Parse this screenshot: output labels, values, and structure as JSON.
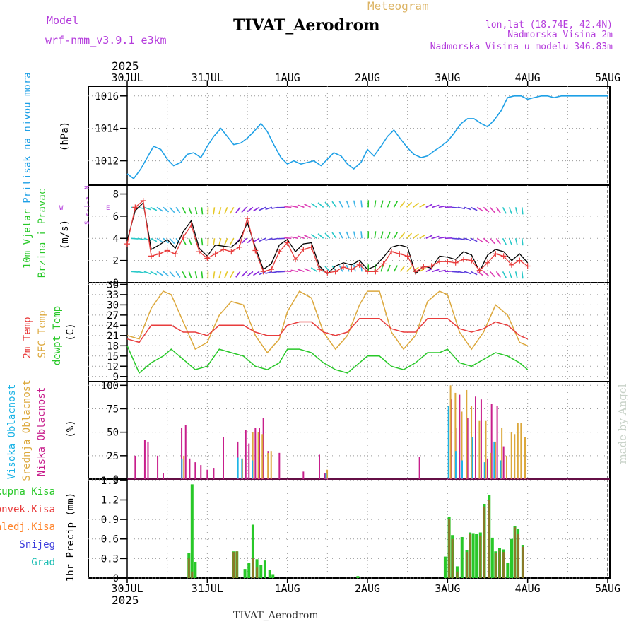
{
  "header": {
    "model_label": "Model",
    "model_name": "wrf-nmm_v3.9.1  e3km",
    "meteogram_label": "Meteogram",
    "station_title": "TIVAT_Aerodrom",
    "location": "lon,lat (18.74E, 42.4N)",
    "altitude": "Nadmorska Visina 2m",
    "model_altitude": "Nadmorska Visina u modelu 346.83m",
    "year_top": "2025",
    "year_bottom": "2025",
    "footer_station": "TIVAT_Aerodrom",
    "watermark": "made by Angel"
  },
  "colors": {
    "pressure": "#1ea0e6",
    "temp2m": "#e83c3c",
    "sfc_temp": "#dca83c",
    "dewpt": "#28c828",
    "high_cloud": "#1eb4e6",
    "mid_cloud": "#dca83c",
    "low_cloud": "#c81e8c",
    "total_precip": "#28c828",
    "conv_precip": "#e83c3c",
    "frozen_precip": "#ff8228",
    "snow": "#3c3cdc",
    "hail": "#1ebeb4",
    "wind_title": "#28c828",
    "compass": "#b43cdc",
    "header_purple": "#b43cdc",
    "meteogram_label": "#dcb464"
  },
  "chart_data": [
    {
      "type": "line",
      "panel": "pressure",
      "title": "Pritisak na nivou mora",
      "ylabel": "(hPa)",
      "x_labels": [
        "30JUL",
        "31JUL",
        "1AUG",
        "2AUG",
        "3AUG",
        "4AUG",
        "5AUG"
      ],
      "ylim": [
        1010.5,
        1016.6
      ],
      "yticks": [
        1012,
        1014,
        1016
      ],
      "x": [
        0,
        0.08,
        0.17,
        0.25,
        0.33,
        0.42,
        0.5,
        0.58,
        0.67,
        0.75,
        0.83,
        0.92,
        1.0,
        1.08,
        1.17,
        1.25,
        1.33,
        1.42,
        1.5,
        1.58,
        1.67,
        1.75,
        1.83,
        1.92,
        2.0,
        2.08,
        2.17,
        2.25,
        2.33,
        2.42,
        2.5,
        2.58,
        2.67,
        2.75,
        2.83,
        2.92,
        3.0,
        3.08,
        3.17,
        3.25,
        3.33,
        3.42,
        3.5,
        3.58,
        3.67,
        3.75,
        3.83,
        3.92,
        4.0,
        4.08,
        4.17,
        4.25,
        4.33,
        4.42,
        4.5,
        4.58,
        4.67,
        4.75,
        4.83,
        4.92,
        5.0,
        5.08,
        5.17,
        5.25,
        5.33,
        5.42,
        5.5,
        5.58,
        5.67,
        5.75,
        5.83,
        5.92,
        6.0
      ],
      "values": [
        1011.2,
        1010.9,
        1011.5,
        1012.2,
        1012.9,
        1012.7,
        1012.1,
        1011.7,
        1011.9,
        1012.4,
        1012.5,
        1012.2,
        1012.9,
        1013.5,
        1014.0,
        1013.5,
        1013.0,
        1013.1,
        1013.4,
        1013.8,
        1014.3,
        1013.8,
        1013.0,
        1012.2,
        1011.8,
        1012.0,
        1011.8,
        1011.9,
        1012.0,
        1011.7,
        1012.1,
        1012.5,
        1012.3,
        1011.8,
        1011.5,
        1011.9,
        1012.7,
        1012.3,
        1012.9,
        1013.5,
        1013.9,
        1013.3,
        1012.8,
        1012.4,
        1012.2,
        1012.3,
        1012.6,
        1012.9,
        1013.2,
        1013.7,
        1014.3,
        1014.6,
        1014.6,
        1014.3,
        1014.1,
        1014.5,
        1015.1,
        1015.9,
        1016.0,
        1016.0,
        1015.8,
        1015.9,
        1016.0,
        1016.0,
        1015.9,
        1016.0,
        1016.0,
        1016.0,
        1016.0,
        1016.0,
        1016.0,
        1016.0,
        1016.0
      ]
    },
    {
      "type": "line",
      "panel": "wind",
      "title_line1": "10m Vjetar",
      "title_line2": "Brzina i Pravac",
      "ylabel": "(m/s)",
      "compass": {
        "north": "N",
        "west": "W",
        "east": "E",
        "south": "S",
        "arrows": "<-|->"
      },
      "ylim": [
        0,
        8.8
      ],
      "yticks": [
        0,
        2,
        4,
        6,
        8
      ],
      "series": [
        {
          "name": "speed_black",
          "color": "#000000",
          "x": [
            0,
            0.1,
            0.2,
            0.3,
            0.4,
            0.5,
            0.6,
            0.7,
            0.8,
            0.9,
            1.0,
            1.1,
            1.2,
            1.3,
            1.4,
            1.5,
            1.6,
            1.7,
            1.8,
            1.9,
            2.0,
            2.1,
            2.2,
            2.3,
            2.4,
            2.5,
            2.6,
            2.7,
            2.8,
            2.9,
            3.0,
            3.1,
            3.2,
            3.3,
            3.4,
            3.5,
            3.6,
            3.7,
            3.8,
            3.9,
            4.0,
            4.1,
            4.2,
            4.3,
            4.4,
            4.5,
            4.6,
            4.7,
            4.8,
            4.9,
            5.0
          ],
          "values": [
            3.8,
            6.5,
            7.2,
            3.0,
            3.4,
            3.9,
            3.1,
            4.6,
            5.6,
            3.1,
            2.4,
            3.4,
            3.3,
            3.2,
            3.8,
            5.4,
            3.2,
            1.2,
            1.7,
            3.4,
            3.9,
            2.8,
            3.5,
            3.6,
            1.5,
            0.8,
            1.5,
            1.8,
            1.6,
            2.0,
            1.2,
            1.5,
            2.3,
            3.2,
            3.4,
            3.2,
            0.8,
            1.5,
            1.3,
            2.4,
            2.3,
            2.1,
            2.8,
            2.5,
            1.0,
            2.5,
            3.0,
            2.8,
            2.0,
            2.6,
            1.8
          ]
        },
        {
          "name": "gust_red",
          "color": "#e83c3c",
          "x": [
            0,
            0.1,
            0.2,
            0.3,
            0.4,
            0.5,
            0.6,
            0.7,
            0.8,
            0.9,
            1.0,
            1.1,
            1.2,
            1.3,
            1.4,
            1.5,
            1.6,
            1.7,
            1.8,
            1.9,
            2.0,
            2.1,
            2.2,
            2.3,
            2.4,
            2.5,
            2.6,
            2.7,
            2.8,
            2.9,
            3.0,
            3.1,
            3.2,
            3.3,
            3.4,
            3.5,
            3.6,
            3.7,
            3.8,
            3.9,
            4.0,
            4.1,
            4.2,
            4.3,
            4.4,
            4.5,
            4.6,
            4.7,
            4.8,
            4.9,
            5.0
          ],
          "values": [
            3.5,
            6.8,
            7.4,
            2.4,
            2.6,
            2.9,
            2.6,
            4.1,
            5.2,
            2.8,
            2.2,
            2.6,
            3.0,
            2.8,
            3.2,
            5.8,
            2.9,
            1.0,
            1.2,
            2.8,
            3.6,
            2.1,
            3.0,
            3.2,
            1.2,
            0.9,
            1.0,
            1.4,
            1.2,
            1.6,
            1.0,
            1.0,
            1.7,
            2.8,
            2.6,
            2.4,
            1.0,
            1.4,
            1.5,
            1.9,
            1.9,
            1.8,
            2.1,
            2.0,
            1.1,
            1.8,
            2.6,
            2.4,
            1.6,
            2.0,
            1.5
          ]
        }
      ]
    },
    {
      "type": "line",
      "panel": "temperature",
      "title_line1": "2m Temp",
      "title_line2": "SFC Temp",
      "title_line3": "dewpt Temp",
      "ylabel": "(C)",
      "ylim": [
        7.5,
        36.5
      ],
      "yticks": [
        9,
        12,
        15,
        18,
        21,
        24,
        27,
        30,
        33,
        36
      ],
      "series": [
        {
          "name": "sfc_temp",
          "x": [
            0,
            0.15,
            0.3,
            0.45,
            0.55,
            0.7,
            0.85,
            1.0,
            1.15,
            1.3,
            1.45,
            1.6,
            1.75,
            1.9,
            2.0,
            2.15,
            2.3,
            2.45,
            2.6,
            2.75,
            2.9,
            3.0,
            3.15,
            3.3,
            3.45,
            3.6,
            3.75,
            3.9,
            4.0,
            4.15,
            4.3,
            4.45,
            4.6,
            4.75,
            4.9,
            5.0
          ],
          "values": [
            21,
            20,
            29,
            34,
            33,
            25,
            17,
            19,
            27,
            31,
            30,
            21,
            16,
            20,
            28,
            34,
            32,
            22,
            17,
            21,
            30,
            34,
            34,
            22,
            17,
            21,
            31,
            34,
            33,
            22,
            17,
            22,
            30,
            27,
            19,
            18
          ]
        },
        {
          "name": "temp2m",
          "x": [
            0,
            0.15,
            0.3,
            0.45,
            0.55,
            0.7,
            0.85,
            1.0,
            1.15,
            1.3,
            1.45,
            1.6,
            1.75,
            1.9,
            2.0,
            2.15,
            2.3,
            2.45,
            2.6,
            2.75,
            2.9,
            3.0,
            3.15,
            3.3,
            3.45,
            3.6,
            3.75,
            3.9,
            4.0,
            4.15,
            4.3,
            4.45,
            4.6,
            4.75,
            4.9,
            5.0
          ],
          "values": [
            20,
            19,
            24,
            24,
            24,
            22,
            22,
            21,
            24,
            24,
            24,
            22,
            21,
            21,
            24,
            25,
            25,
            22,
            21,
            22,
            26,
            26,
            26,
            23,
            22,
            22,
            26,
            26,
            26,
            23,
            22,
            23,
            25,
            24,
            21,
            20
          ]
        },
        {
          "name": "dewpt",
          "x": [
            0,
            0.15,
            0.3,
            0.45,
            0.55,
            0.7,
            0.85,
            1.0,
            1.15,
            1.3,
            1.45,
            1.6,
            1.75,
            1.9,
            2.0,
            2.15,
            2.3,
            2.45,
            2.6,
            2.75,
            2.9,
            3.0,
            3.15,
            3.3,
            3.45,
            3.6,
            3.75,
            3.9,
            4.0,
            4.15,
            4.3,
            4.45,
            4.6,
            4.75,
            4.9,
            5.0
          ],
          "values": [
            18,
            10,
            13,
            15,
            17,
            14,
            11,
            12,
            17,
            16,
            15,
            12,
            11,
            13,
            17,
            17,
            16,
            13,
            11,
            10,
            13,
            15,
            15,
            12,
            11,
            13,
            16,
            16,
            17,
            13,
            12,
            14,
            16,
            15,
            13,
            11
          ]
        }
      ]
    },
    {
      "type": "bar",
      "panel": "cloud",
      "title_line1": "Visoka Oblacnost",
      "title_line2": "Srednja Oblacnost",
      "title_line3": "Niska Oblacnost",
      "ylabel": "(%)",
      "ylim": [
        0,
        104
      ],
      "yticks": [
        0,
        25,
        50,
        75,
        100
      ],
      "series": [
        {
          "name": "low",
          "x": [
            0.1,
            0.22,
            0.26,
            0.38,
            0.45,
            0.68,
            0.73,
            0.78,
            0.85,
            0.92,
            1.0,
            1.08,
            1.2,
            1.38,
            1.48,
            1.52,
            1.6,
            1.65,
            1.7,
            1.76,
            1.9,
            2.2,
            2.4,
            2.47,
            3.65,
            4.05,
            4.1,
            4.15,
            4.25,
            4.3,
            4.35,
            4.42,
            4.5,
            4.55,
            4.62,
            4.7
          ],
          "values": [
            25,
            42,
            40,
            25,
            6,
            55,
            58,
            22,
            18,
            15,
            10,
            12,
            45,
            40,
            52,
            38,
            55,
            55,
            65,
            30,
            28,
            8,
            26,
            6,
            24,
            85,
            55,
            90,
            65,
            30,
            88,
            85,
            22,
            80,
            78,
            35
          ]
        },
        {
          "name": "mid",
          "x": [
            0.69,
            1.42,
            1.55,
            1.62,
            1.67,
            1.74,
            1.78,
            2.48,
            4.02,
            4.08,
            4.16,
            4.22,
            4.28,
            4.38,
            4.46,
            4.52,
            4.58,
            4.66,
            4.72,
            4.78,
            4.82,
            4.86,
            4.9,
            4.95
          ],
          "values": [
            25,
            22,
            50,
            50,
            48,
            28,
            30,
            10,
            100,
            92,
            72,
            95,
            78,
            62,
            62,
            28,
            40,
            55,
            25,
            50,
            48,
            60,
            60,
            45
          ]
        },
        {
          "name": "high",
          "x": [
            0.7,
            1.4,
            1.45,
            1.58,
            2.5,
            4.03,
            4.12,
            4.2,
            4.33,
            4.48,
            4.6,
            4.68
          ],
          "values": [
            22,
            23,
            22,
            20,
            6,
            78,
            30,
            20,
            45,
            18,
            40,
            20
          ]
        }
      ]
    },
    {
      "type": "bar",
      "panel": "precip",
      "legend": [
        "Ukupna Kisa",
        "Konvek.Kisa",
        "Zaledj.Kisa",
        "Snijeg",
        "Grad"
      ],
      "ylabel": "1hr Precip (mm)",
      "ylim": [
        0,
        1.52
      ],
      "yticks": [
        0,
        0.3,
        0.6,
        0.9,
        1.2,
        1.5
      ],
      "x_labels": [
        "30JUL",
        "31JUL",
        "1AUG",
        "2AUG",
        "3AUG",
        "4AUG",
        "5AUG"
      ],
      "series": [
        {
          "name": "total",
          "x": [
            0.77,
            0.81,
            0.85,
            1.33,
            1.37,
            1.47,
            1.52,
            1.57,
            1.62,
            1.67,
            1.72,
            1.78,
            1.82,
            2.88,
            3.97,
            4.02,
            4.06,
            4.12,
            4.18,
            4.24,
            4.28,
            4.32,
            4.36,
            4.41,
            4.46,
            4.52,
            4.56,
            4.6,
            4.65,
            4.7,
            4.75,
            4.8,
            4.84,
            4.88,
            4.94
          ],
          "values": [
            0.38,
            1.44,
            0.25,
            0.41,
            0.41,
            0.14,
            0.23,
            0.82,
            0.29,
            0.2,
            0.27,
            0.13,
            0.06,
            0.03,
            0.33,
            0.94,
            0.66,
            0.18,
            0.63,
            0.43,
            0.7,
            0.69,
            0.68,
            0.7,
            1.14,
            1.28,
            0.62,
            0.41,
            0.46,
            0.44,
            0.23,
            0.6,
            0.8,
            0.75,
            0.51
          ]
        },
        {
          "name": "convective",
          "x": [
            0.77,
            0.81,
            1.33,
            1.37,
            1.57,
            1.62,
            4.02,
            4.06,
            4.12,
            4.24,
            4.28,
            4.41,
            4.46,
            4.52,
            4.6,
            4.65,
            4.7,
            4.84,
            4.88,
            4.94
          ],
          "values": [
            0.3,
            0.1,
            0.4,
            0.41,
            0.3,
            0.16,
            0.9,
            0.6,
            0.1,
            0.4,
            0.68,
            0.65,
            1.1,
            1.2,
            0.38,
            0.42,
            0.4,
            0.78,
            0.68,
            0.48
          ]
        }
      ]
    }
  ]
}
